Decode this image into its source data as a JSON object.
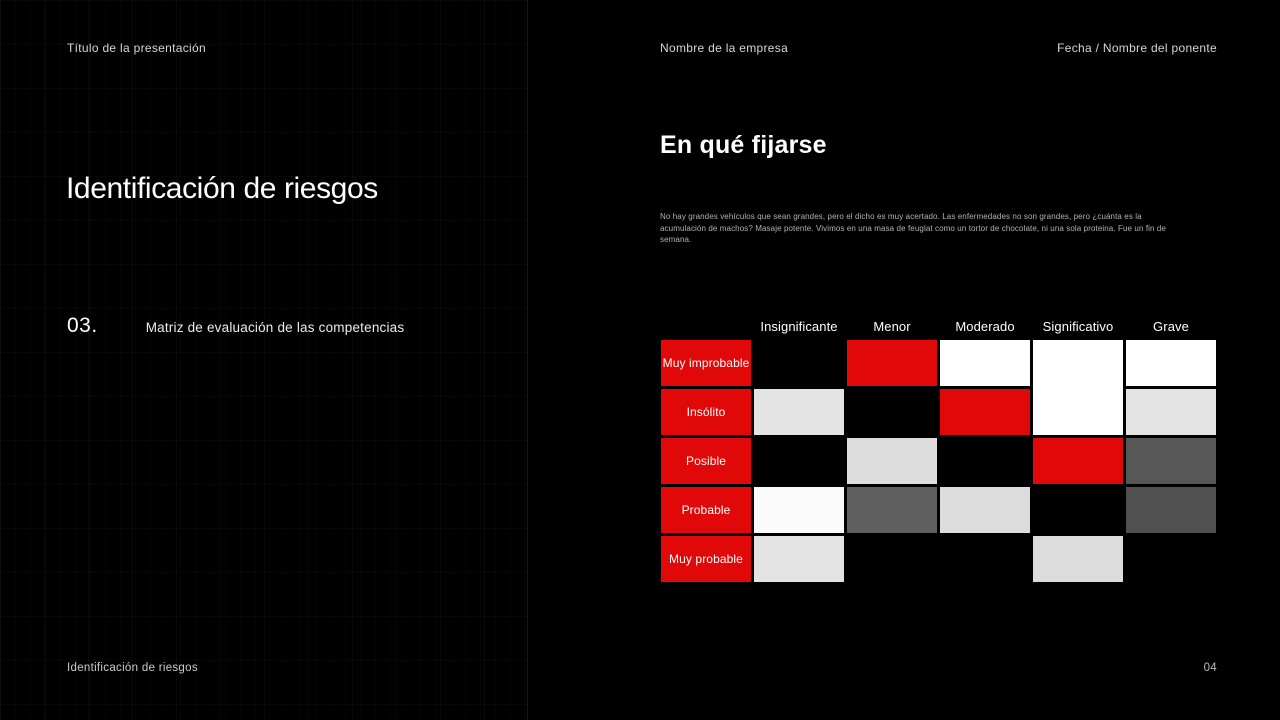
{
  "slide": {
    "background": "#000000",
    "accent": "#e00808"
  },
  "header": {
    "presentation_title": "Título de la presentación",
    "company_name": "Nombre de la empresa",
    "date_speaker": "Fecha / Nombre del ponente"
  },
  "left_panel": {
    "title": "Identificación de riesgos",
    "section_number": "03.",
    "section_subtitle": "Matriz de evaluación de las competencias"
  },
  "content": {
    "heading": "En qué fijarse",
    "paragraph": "No hay grandes vehículos que sean grandes, pero el dicho es muy acertado. Las enfermedades no son grandes, pero ¿cuánta es la acumulación de machos? Masaje potente. Vivimos en una masa de feuglat como un tortor de chocolate, ni una sola proteina. Fue un fin de semana."
  },
  "matrix": {
    "column_headers": [
      "Insignificante",
      "Menor",
      "Moderado",
      "Significativo",
      "Grave"
    ],
    "row_headers": [
      "Muy improbable",
      "Insólito",
      "Posible",
      "Probable",
      "Muy probable"
    ],
    "palette": {
      "red": "#e00808",
      "black": "#000000",
      "white": "#ffffff",
      "light": "#e3e3e3",
      "lightmid": "#dcdcdc",
      "nearwhite": "#fbfbfb",
      "gray-dark": "#575757",
      "gray-mid": "#5f5f5f",
      "gray-deep": "#505050"
    },
    "cells": [
      [
        "black",
        "red",
        "white",
        "white|span2",
        "white"
      ],
      [
        "light",
        "black",
        "red",
        null,
        "light"
      ],
      [
        "black",
        "lightmid",
        "black",
        "red",
        "gray-dark"
      ],
      [
        "nearwhite",
        "gray-mid",
        "lightmid",
        "black",
        "gray-deep"
      ],
      [
        "light",
        "black",
        "black",
        "lightmid",
        "black"
      ]
    ]
  },
  "footer": {
    "section_title": "Identificación de riesgos",
    "page_number": "04"
  }
}
